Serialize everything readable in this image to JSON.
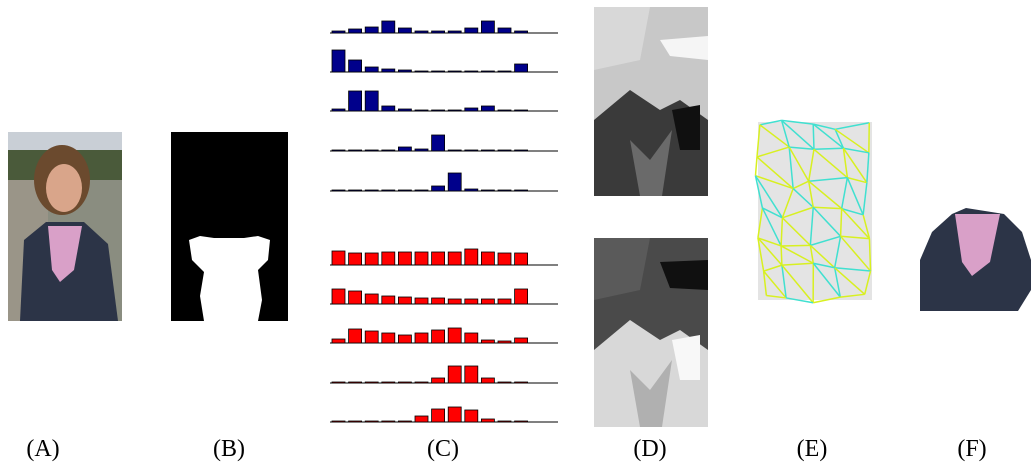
{
  "panel_labels": [
    "(A)",
    "(B)",
    "(C)",
    "(D)",
    "(E)",
    "(F)"
  ],
  "chart_data": [
    {
      "type": "bar",
      "color": "#00008b",
      "values": [
        2,
        4,
        6,
        12,
        5,
        2,
        2,
        2,
        5,
        12,
        5,
        2
      ]
    },
    {
      "type": "bar",
      "color": "#00008b",
      "values": [
        22,
        12,
        5,
        3,
        2,
        1,
        1,
        1,
        1,
        1,
        1,
        8
      ]
    },
    {
      "type": "bar",
      "color": "#00008b",
      "values": [
        2,
        20,
        20,
        5,
        2,
        1,
        1,
        1,
        3,
        5,
        1,
        1
      ]
    },
    {
      "type": "bar",
      "color": "#00008b",
      "values": [
        1,
        1,
        1,
        1,
        4,
        2,
        16,
        1,
        1,
        1,
        1,
        1
      ]
    },
    {
      "type": "bar",
      "color": "#00008b",
      "values": [
        1,
        1,
        1,
        1,
        1,
        1,
        5,
        18,
        2,
        1,
        1,
        1
      ]
    },
    {
      "type": "bar",
      "color": "#ff0000",
      "values": [
        14,
        12,
        12,
        13,
        13,
        13,
        13,
        13,
        16,
        13,
        12,
        12
      ]
    },
    {
      "type": "bar",
      "color": "#ff0000",
      "values": [
        15,
        13,
        10,
        8,
        7,
        6,
        6,
        5,
        5,
        5,
        5,
        15
      ]
    },
    {
      "type": "bar",
      "color": "#ff0000",
      "values": [
        4,
        14,
        12,
        10,
        8,
        10,
        13,
        15,
        10,
        3,
        2,
        5
      ]
    },
    {
      "type": "bar",
      "color": "#ff0000",
      "values": [
        1,
        1,
        1,
        1,
        1,
        1,
        5,
        17,
        17,
        5,
        1,
        1
      ]
    },
    {
      "type": "bar",
      "color": "#ff0000",
      "values": [
        1,
        1,
        1,
        1,
        1,
        6,
        13,
        15,
        12,
        3,
        1,
        1
      ]
    }
  ]
}
